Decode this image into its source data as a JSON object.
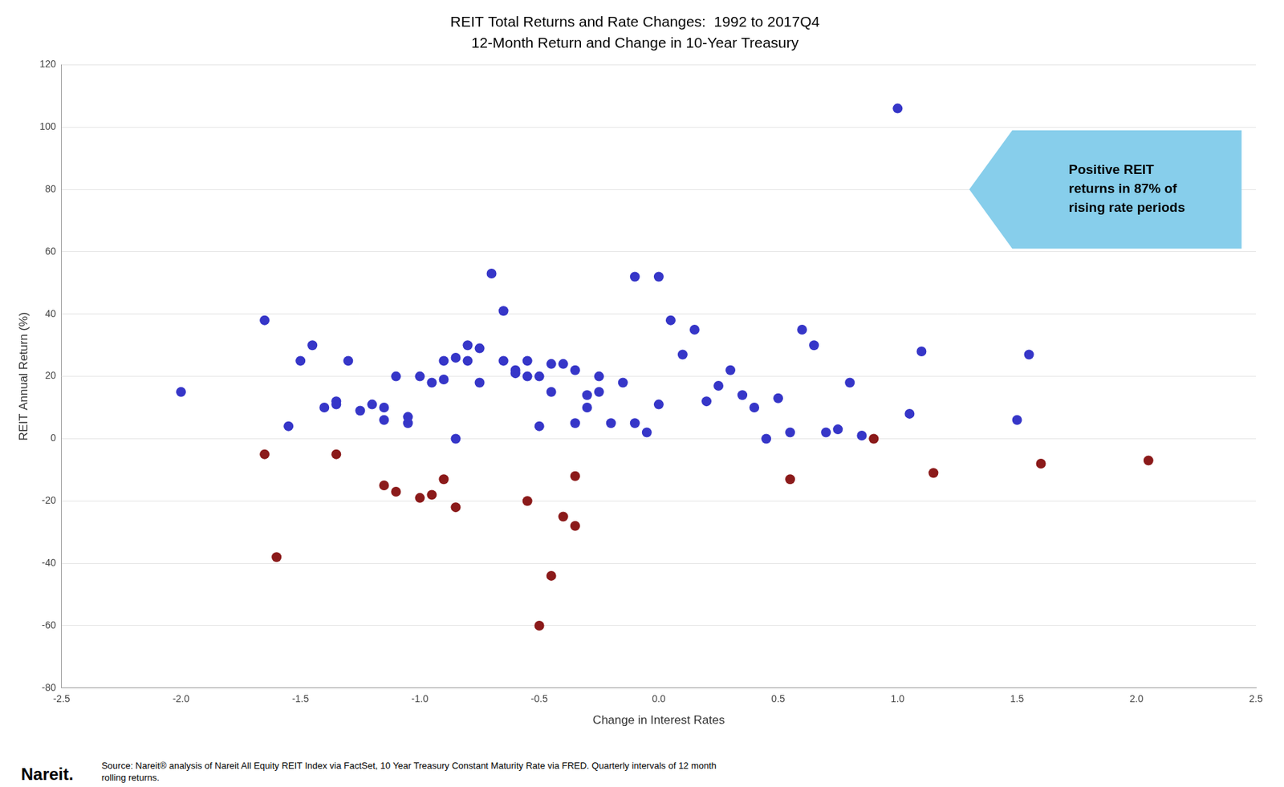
{
  "chart_data": {
    "type": "scatter",
    "title": "REIT Total Returns and Rate Changes:  1992 to 2017Q4",
    "subtitle": "12-Month Return and Change in 10-Year Treasury",
    "xlabel": "Change in Interest Rates",
    "ylabel": "REIT Annual Return (%)",
    "xlim": [
      -2.5,
      2.5
    ],
    "ylim": [
      -80,
      120
    ],
    "xticks": [
      -2.5,
      {
        "value": -2.0,
        "label": "-2.0"
      },
      -1.5,
      {
        "value": -1.0,
        "label": "-1.0"
      },
      -0.5,
      {
        "value": 0.0,
        "label": "0.0"
      },
      0.5,
      {
        "value": 1.0,
        "label": "1.0"
      },
      1.5,
      {
        "value": 2.0,
        "label": "2.0"
      },
      2.5
    ],
    "yticks": [
      -80,
      -60,
      -40,
      -20,
      0,
      20,
      40,
      60,
      80,
      100,
      120
    ],
    "grid": "y",
    "legend": false,
    "series": [
      {
        "color": "#3636C8",
        "marker": "circle",
        "x": [
          -2.0,
          -1.65,
          -1.55,
          -1.5,
          -1.45,
          -1.4,
          -1.35,
          -1.35,
          -1.3,
          -1.25,
          -1.2,
          -1.15,
          -1.15,
          -1.1,
          -1.05,
          -1.05,
          -1.0,
          -0.95,
          -0.9,
          -0.9,
          -0.85,
          -0.85,
          -0.8,
          -0.8,
          -0.75,
          -0.75,
          -0.7,
          -0.65,
          -0.65,
          -0.6,
          -0.6,
          -0.55,
          -0.55,
          -0.5,
          -0.5,
          -0.45,
          -0.45,
          -0.4,
          -0.35,
          -0.35,
          -0.3,
          -0.3,
          -0.25,
          -0.25,
          -0.2,
          -0.15,
          -0.1,
          -0.1,
          -0.05,
          0.0,
          0.0,
          0.05,
          0.1,
          0.15,
          0.2,
          0.25,
          0.3,
          0.35,
          0.4,
          0.45,
          0.5,
          0.55,
          0.6,
          0.65,
          0.7,
          0.75,
          0.8,
          0.85,
          1.0,
          1.05,
          1.1,
          1.5,
          1.55
        ],
        "values": [
          15,
          38,
          4,
          25,
          30,
          10,
          12,
          11,
          25,
          9,
          11,
          10,
          6,
          20,
          5,
          7,
          20,
          18,
          19,
          25,
          0,
          26,
          25,
          30,
          18,
          29,
          53,
          41,
          25,
          21,
          22,
          20,
          25,
          20,
          4,
          15,
          24,
          24,
          5,
          22,
          10,
          14,
          20,
          15,
          5,
          18,
          52,
          5,
          2,
          52,
          11,
          38,
          27,
          35,
          12,
          17,
          22,
          14,
          10,
          0,
          13,
          2,
          35,
          30,
          2,
          3,
          18,
          1,
          106,
          8,
          28,
          6,
          27
        ]
      },
      {
        "color": "#8B1A1A",
        "marker": "circle",
        "x": [
          -1.65,
          -1.6,
          -1.35,
          -1.15,
          -1.1,
          -1.0,
          -0.95,
          -0.9,
          -0.85,
          -0.55,
          -0.5,
          -0.45,
          -0.4,
          -0.35,
          -0.35,
          0.55,
          0.9,
          1.15,
          1.6,
          2.05
        ],
        "values": [
          -5,
          -38,
          -5,
          -15,
          -17,
          -19,
          -18,
          -13,
          -22,
          -20,
          -60,
          -44,
          -25,
          -28,
          -12,
          -13,
          0,
          -11,
          -8,
          -7
        ]
      }
    ],
    "annotations": [
      {
        "text": "Positive REIT\nreturns in 87% of\nrising rate periods",
        "color": "#87CEEB"
      }
    ],
    "footer": "Nareit.",
    "source": "Source: Nareit® analysis of Nareit All Equity REIT  Index via FactSet, 10 Year Treasury Constant Maturity Rate via FRED.  Quarterly intervals of 12 month\nrolling returns."
  }
}
